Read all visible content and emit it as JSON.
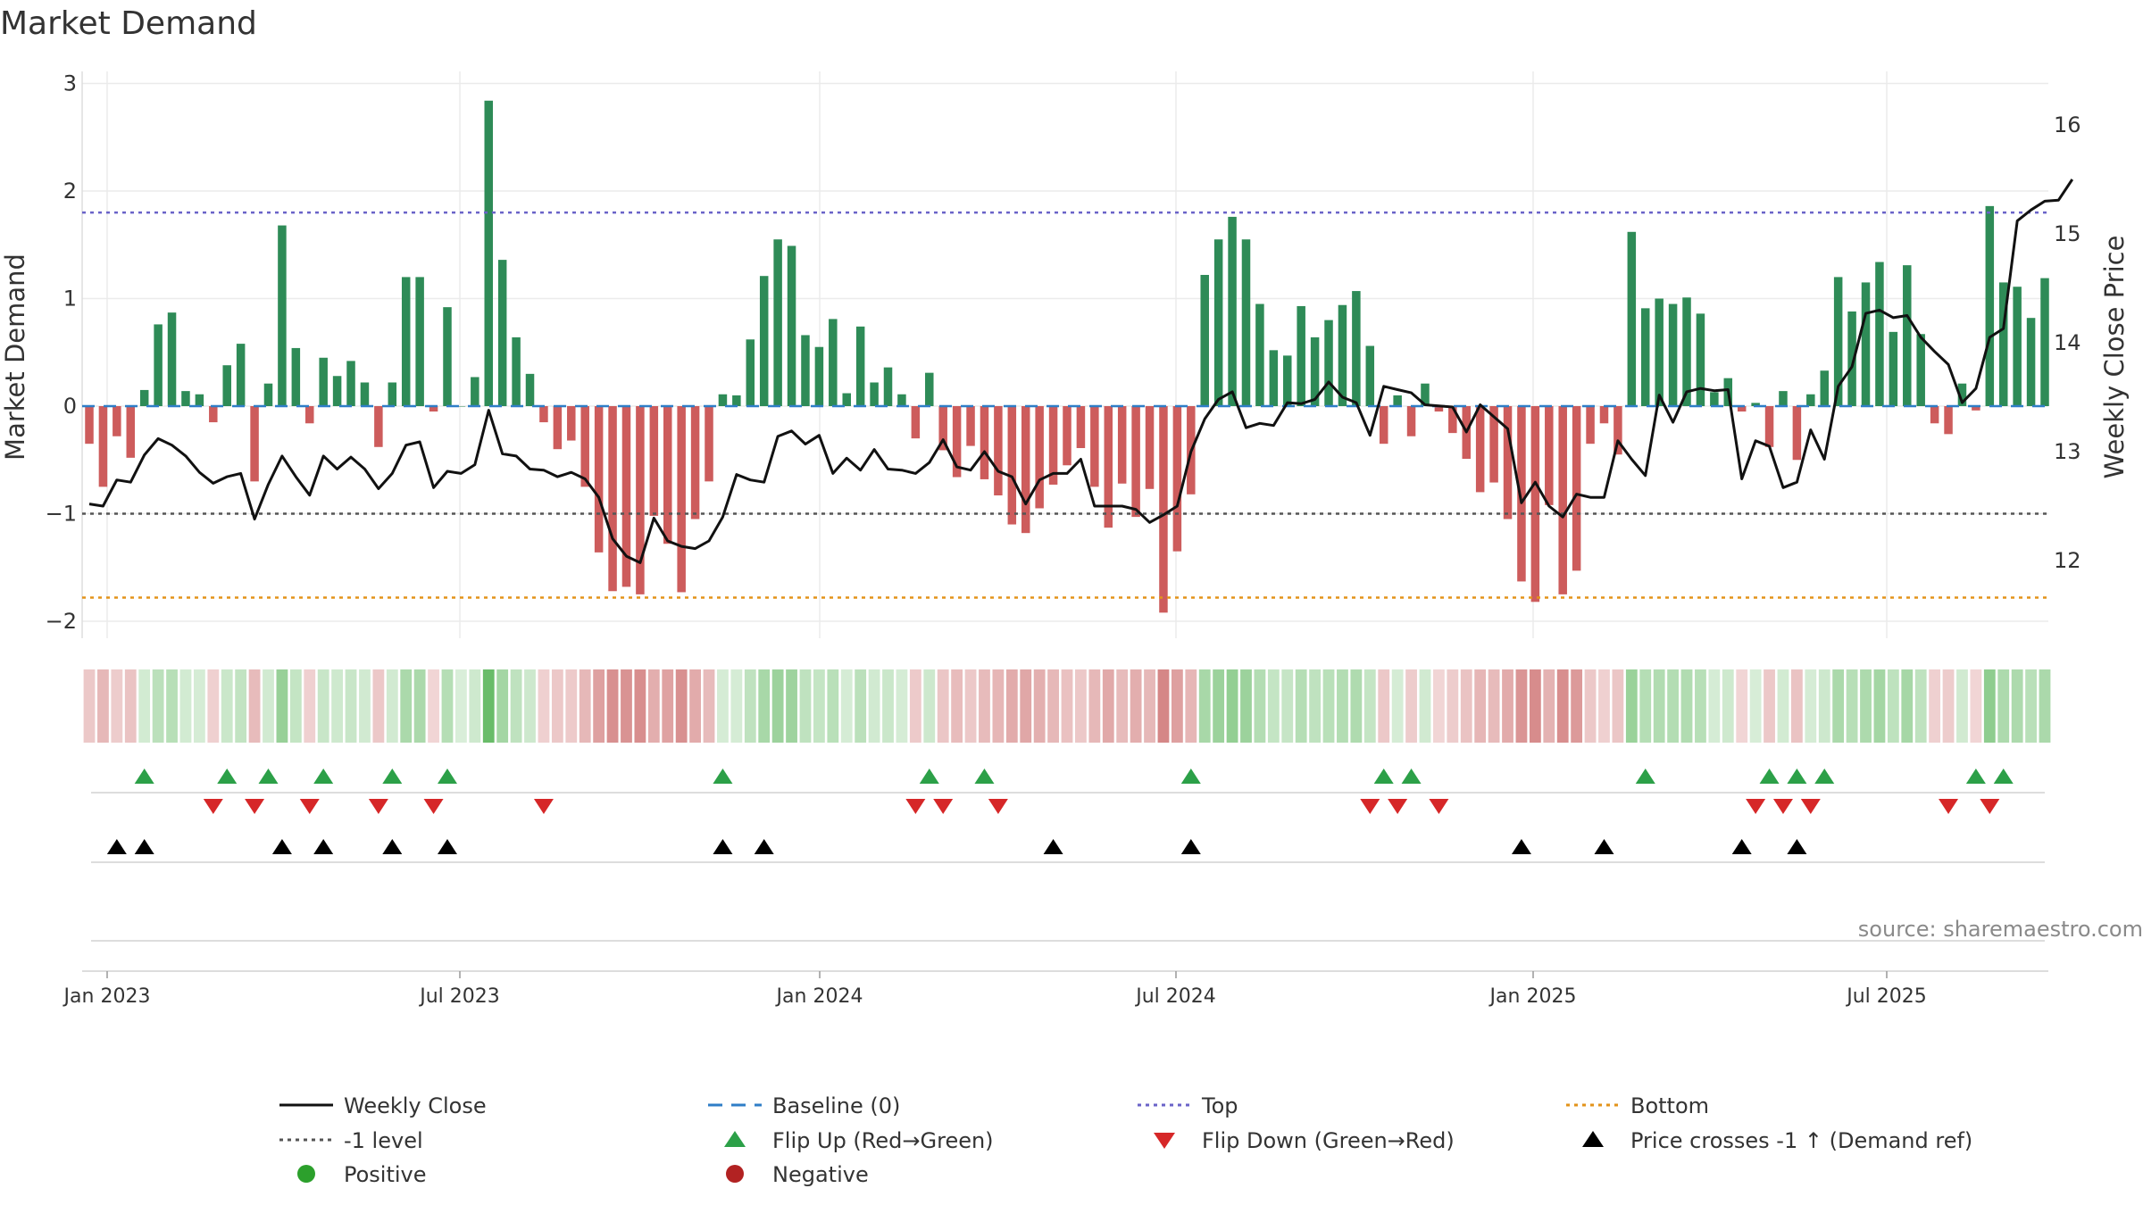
{
  "chart_data": {
    "type": "bar",
    "title": "Market Demand",
    "ylabel_left": "Market Demand",
    "ylabel_right": "Weekly Close Price",
    "ylim_left": [
      -2.2,
      3.1
    ],
    "ylim_right": [
      11.3,
      16.4
    ],
    "yticks_left": [
      "3",
      "2",
      "1",
      "0",
      "−1",
      "−2"
    ],
    "yticks_right": [
      "16",
      "15",
      "14",
      "13",
      "12"
    ],
    "x_ticks": [
      "Jan 2023",
      "Jul 2023",
      "Jan 2024",
      "Jul 2024",
      "Jan 2025",
      "Jul 2025"
    ],
    "reference_lines": {
      "baseline": 0,
      "top": 1.8,
      "minus_one": -1,
      "bottom": -1.78
    },
    "demand": [
      -0.35,
      -0.75,
      -0.28,
      -0.48,
      0.15,
      0.76,
      0.87,
      0.14,
      0.11,
      -0.15,
      0.38,
      0.58,
      -0.7,
      0.21,
      1.68,
      0.54,
      -0.16,
      0.45,
      0.28,
      0.42,
      0.22,
      -0.38,
      0.22,
      1.2,
      1.2,
      -0.05,
      0.92,
      0.0,
      0.27,
      2.84,
      1.36,
      0.64,
      0.3,
      -0.15,
      -0.4,
      -0.32,
      -0.75,
      -1.36,
      -1.72,
      -1.68,
      -1.75,
      -1.02,
      -1.28,
      -1.73,
      -1.05,
      -0.7,
      0.11,
      0.1,
      0.62,
      1.21,
      1.55,
      1.49,
      0.66,
      0.55,
      0.81,
      0.12,
      0.74,
      0.22,
      0.36,
      0.11,
      -0.3,
      0.31,
      -0.41,
      -0.66,
      -0.37,
      -0.68,
      -0.83,
      -1.1,
      -1.18,
      -0.95,
      -0.73,
      -0.55,
      -0.39,
      -0.75,
      -1.13,
      -0.72,
      -1.03,
      -0.77,
      -1.92,
      -1.35,
      -0.82,
      1.22,
      1.55,
      1.76,
      1.55,
      0.95,
      0.52,
      0.47,
      0.93,
      0.64,
      0.8,
      0.94,
      1.07,
      0.56,
      -0.35,
      0.1,
      -0.28,
      0.21,
      -0.05,
      -0.25,
      -0.49,
      -0.8,
      -0.71,
      -1.05,
      -1.63,
      -1.82,
      -0.92,
      -1.75,
      -1.53,
      -0.35,
      -0.16,
      -0.45,
      1.62,
      0.91,
      1.0,
      0.95,
      1.01,
      0.86,
      0.13,
      0.26,
      -0.05,
      0.03,
      -0.38,
      0.14,
      -0.5,
      0.11,
      0.33,
      1.2,
      0.88,
      1.15,
      1.34,
      0.69,
      1.31,
      0.67,
      -0.16,
      -0.26,
      0.21,
      -0.04,
      1.86,
      1.15,
      1.11,
      0.82,
      1.19
    ],
    "weekly_close": [
      12.52,
      12.5,
      12.74,
      12.72,
      12.97,
      13.12,
      13.06,
      12.96,
      12.81,
      12.71,
      12.77,
      12.8,
      12.38,
      12.7,
      12.96,
      12.77,
      12.6,
      12.96,
      12.84,
      12.95,
      12.84,
      12.66,
      12.8,
      13.06,
      13.09,
      12.67,
      12.82,
      12.8,
      12.88,
      13.38,
      12.98,
      12.96,
      12.84,
      12.83,
      12.77,
      12.81,
      12.75,
      12.58,
      12.2,
      12.04,
      11.98,
      12.39,
      12.18,
      12.13,
      12.11,
      12.18,
      12.4,
      12.79,
      12.74,
      12.72,
      13.14,
      13.19,
      13.07,
      13.15,
      12.8,
      12.94,
      12.83,
      13.02,
      12.84,
      12.83,
      12.8,
      12.9,
      13.11,
      12.86,
      12.83,
      13.0,
      12.82,
      12.77,
      12.52,
      12.74,
      12.8,
      12.8,
      12.93,
      12.5,
      12.5,
      12.5,
      12.47,
      12.35,
      12.42,
      12.5,
      13.0,
      13.3,
      13.48,
      13.55,
      13.22,
      13.26,
      13.24,
      13.45,
      13.44,
      13.48,
      13.64,
      13.5,
      13.45,
      13.15,
      13.6,
      13.57,
      13.54,
      13.43,
      13.42,
      13.41,
      13.18,
      13.43,
      13.32,
      13.21,
      12.53,
      12.72,
      12.5,
      12.4,
      12.61,
      12.58,
      12.58,
      13.1,
      12.93,
      12.78,
      13.52,
      13.27,
      13.55,
      13.58,
      13.56,
      13.57,
      12.75,
      13.1,
      13.05,
      12.67,
      12.72,
      13.2,
      12.93,
      13.6,
      13.78,
      14.27,
      14.3,
      14.23,
      14.25,
      14.05,
      13.92,
      13.8,
      13.45,
      13.58,
      14.05,
      14.13,
      15.12,
      15.22,
      15.3,
      15.31,
      15.5
    ],
    "flip_up_weeks": [
      4,
      10,
      13,
      17,
      22,
      26,
      46,
      61,
      65,
      80,
      94,
      96,
      113,
      122,
      124,
      126,
      137,
      139
    ],
    "flip_down_weeks": [
      9,
      12,
      16,
      21,
      25,
      33,
      60,
      62,
      66,
      93,
      95,
      98,
      121,
      123,
      125,
      135,
      138
    ],
    "cross_weeks": [
      2,
      4,
      14,
      17,
      22,
      26,
      46,
      49,
      70,
      80,
      104,
      110,
      120,
      124
    ],
    "source": "source: sharemaestro.com",
    "legend": [
      {
        "label": "Weekly Close",
        "symbol": "line",
        "color": "#111111"
      },
      {
        "label": "Baseline (0)",
        "symbol": "dash",
        "color": "#2f7ec7"
      },
      {
        "label": "Top",
        "symbol": "dot",
        "color": "#6a63c8"
      },
      {
        "label": "Bottom",
        "symbol": "dot",
        "color": "#e3931a"
      },
      {
        "label": "-1 level",
        "symbol": "dot",
        "color": "#555555"
      },
      {
        "label": "Flip Up (Red→Green)",
        "symbol": "tri-up",
        "color": "#2ca048"
      },
      {
        "label": "Flip Down (Green→Red)",
        "symbol": "tri-down",
        "color": "#d62728"
      },
      {
        "label": "Price crosses -1 ↑ (Demand ref)",
        "symbol": "tri-up",
        "color": "#000000"
      },
      {
        "label": "Positive",
        "symbol": "circle",
        "color": "#2ca02c"
      },
      {
        "label": "Negative",
        "symbol": "circle",
        "color": "#b22222"
      }
    ]
  },
  "colors": {
    "positive_bar": "#2e8b57",
    "negative_bar": "#cd5c5c",
    "line": "#111111",
    "grid": "#ebebeb"
  }
}
